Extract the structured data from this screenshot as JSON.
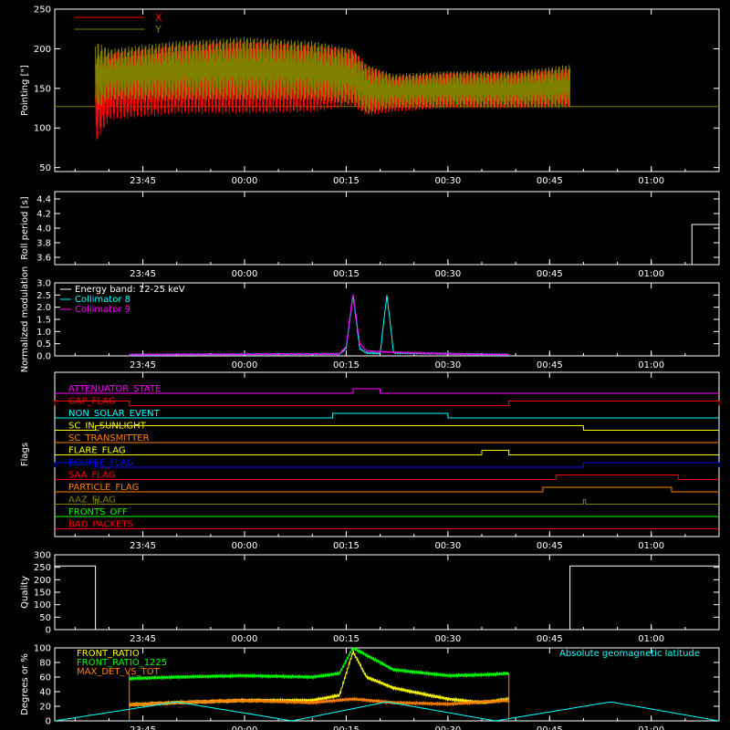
{
  "chart_data": [
    {
      "type": "line",
      "id": "pointing",
      "ylabel": "Pointing [\"]",
      "ylim": [
        45,
        250
      ],
      "yticks": [
        "50",
        "100",
        "150",
        "200",
        "250"
      ],
      "xticks": [
        "23:45",
        "00:00",
        "00:15",
        "00:30",
        "00:45",
        "01:00"
      ],
      "series": [
        {
          "name": "X",
          "color": "#ff0000"
        },
        {
          "name": "Y",
          "color": "#808000"
        }
      ],
      "baseline": 127,
      "envelope_times": [
        "23:38",
        "23:40",
        "23:50",
        "00:00",
        "00:10",
        "00:16",
        "00:18",
        "00:22",
        "00:30",
        "00:40",
        "00:48"
      ],
      "x_low": [
        80,
        110,
        118,
        118,
        120,
        128,
        115,
        120,
        125,
        125,
        127
      ],
      "x_high": [
        185,
        195,
        205,
        210,
        205,
        200,
        180,
        165,
        170,
        170,
        175
      ],
      "y_low": [
        120,
        135,
        135,
        135,
        135,
        130,
        118,
        125,
        125,
        125,
        125
      ],
      "y_high": [
        210,
        200,
        210,
        215,
        210,
        200,
        180,
        168,
        172,
        172,
        180
      ]
    },
    {
      "type": "line",
      "id": "roll-period",
      "ylabel": "Roll period [s]",
      "ylim": [
        3.5,
        4.5
      ],
      "yticks": [
        "3.6",
        "3.8",
        "4.0",
        "4.2",
        "4.4"
      ],
      "xticks": [
        "23:45",
        "00:00",
        "00:15",
        "00:30",
        "00:45",
        "01:00"
      ],
      "step_start": "01:06",
      "step_value": 4.05
    },
    {
      "type": "line",
      "id": "modulation",
      "ylabel": "Normalized modulation",
      "ylim": [
        0,
        3
      ],
      "yticks": [
        "0.0",
        "0.5",
        "1.0",
        "1.5",
        "2.0",
        "2.5",
        "3.0"
      ],
      "xticks": [
        "23:45",
        "00:00",
        "00:15",
        "00:30",
        "00:45",
        "01:00"
      ],
      "legend": [
        "Energy band: 12-25 keV",
        "Collimator 8",
        "Collimator 9"
      ],
      "series": [
        {
          "name": "Collimator 8",
          "color": "#00ffff",
          "x": [
            "23:43",
            "00:14",
            "00:15",
            "00:16",
            "00:17",
            "00:18",
            "00:20",
            "00:21",
            "00:22",
            "00:39"
          ],
          "y": [
            0.05,
            0.08,
            0.3,
            2.5,
            0.3,
            0.12,
            0.1,
            2.5,
            0.12,
            0.05
          ]
        },
        {
          "name": "Collimator 9",
          "color": "#ff00ff",
          "x": [
            "23:43",
            "00:14",
            "00:15",
            "00:16",
            "00:17",
            "00:18",
            "00:22",
            "00:30",
            "00:39"
          ],
          "y": [
            0.05,
            0.08,
            0.4,
            2.6,
            0.5,
            0.2,
            0.15,
            0.08,
            0.05
          ]
        }
      ]
    },
    {
      "type": "line",
      "id": "flags",
      "ylabel": "Flags",
      "xticks": [
        "23:45",
        "00:00",
        "00:15",
        "00:30",
        "00:45",
        "01:00"
      ],
      "flags": [
        {
          "name": "ATTENUATOR_STATE",
          "color": "#ff00ff",
          "on": [
            [
              "00:16",
              "00:20"
            ]
          ]
        },
        {
          "name": "GAP_FLAG",
          "color": "#ff0000",
          "on": [
            [
              "23:32",
              "23:43"
            ],
            [
              "00:39",
              "01:10"
            ]
          ]
        },
        {
          "name": "NON_SOLAR_EVENT",
          "color": "#00ffff",
          "on": [
            [
              "00:13",
              "00:30"
            ]
          ]
        },
        {
          "name": "SC_IN_SUNLIGHT",
          "color": "#ffff00",
          "on": [
            [
              "23:38",
              "00:50"
            ]
          ]
        },
        {
          "name": "SC_TRANSMITTER",
          "color": "#ff8000",
          "on": []
        },
        {
          "name": "FLARE_FLAG",
          "color": "#ffff00",
          "on": [
            [
              "00:35",
              "00:39"
            ]
          ]
        },
        {
          "name": "ECLIPSE_FLAG",
          "color": "#0000ff",
          "on": [
            [
              "23:32",
              "23:38"
            ],
            [
              "00:50",
              "01:10"
            ]
          ]
        },
        {
          "name": "SAA_FLAG",
          "color": "#ff0000",
          "on": [
            [
              "00:46",
              "01:04"
            ]
          ]
        },
        {
          "name": "PARTICLE_FLAG",
          "color": "#ff8000",
          "on": [
            [
              "00:44",
              "01:03"
            ]
          ]
        },
        {
          "name": "AAZ_FLAG",
          "color": "#808000",
          "on": [
            [
              "23:38",
              "23:38.3"
            ],
            [
              "00:50",
              "00:50.3"
            ]
          ]
        },
        {
          "name": "FRONTS_OFF",
          "color": "#00ff00",
          "on": []
        },
        {
          "name": "BAD_PACKETS",
          "color": "#ff0000",
          "on": []
        }
      ]
    },
    {
      "type": "line",
      "id": "quality",
      "ylabel": "Quality",
      "ylim": [
        0,
        300
      ],
      "yticks": [
        "0",
        "50",
        "100",
        "150",
        "200",
        "250",
        "300"
      ],
      "xticks": [
        "23:45",
        "00:00",
        "00:15",
        "00:30",
        "00:45",
        "01:00"
      ],
      "x": [
        "23:32",
        "23:38",
        "23:38",
        "00:48",
        "00:48",
        "01:10"
      ],
      "y": [
        255,
        255,
        0,
        0,
        255,
        255
      ]
    },
    {
      "type": "line",
      "id": "ratios",
      "ylabel": "Degrees or %",
      "ylim": [
        0,
        100
      ],
      "yticks": [
        "0",
        "20",
        "40",
        "60",
        "80",
        "100"
      ],
      "xticks": [
        "23:45",
        "00:00",
        "00:15",
        "00:30",
        "00:45",
        "01:00"
      ],
      "annotation": "Absolute geomagnetic latitude",
      "series": [
        {
          "name": "FRONT_RATIO",
          "color": "#ffff00",
          "x": [
            "23:43",
            "23:50",
            "00:00",
            "00:10",
            "00:14",
            "00:16",
            "00:18",
            "00:22",
            "00:30",
            "00:35",
            "00:39"
          ],
          "y": [
            22,
            25,
            28,
            28,
            35,
            95,
            60,
            45,
            30,
            25,
            30
          ]
        },
        {
          "name": "FRONT_RATIO_1225",
          "color": "#00ff00",
          "x": [
            "23:43",
            "23:50",
            "00:00",
            "00:10",
            "00:14",
            "00:16",
            "00:18",
            "00:22",
            "00:30",
            "00:35",
            "00:39"
          ],
          "y": [
            58,
            60,
            62,
            60,
            65,
            100,
            90,
            70,
            62,
            63,
            65
          ]
        },
        {
          "name": "MAX_DET_VS_TOT",
          "color": "#ff8000",
          "x": [
            "23:43",
            "23:50",
            "00:00",
            "00:10",
            "00:16",
            "00:22",
            "00:30",
            "00:39"
          ],
          "y": [
            22,
            25,
            28,
            25,
            30,
            25,
            23,
            28
          ]
        },
        {
          "name": "",
          "color": "#00ffff",
          "x": [
            "23:32",
            "23:50",
            "00:07",
            "00:21",
            "00:37",
            "00:54",
            "01:10"
          ],
          "y": [
            0,
            26,
            0,
            26,
            0,
            26,
            0
          ]
        }
      ]
    }
  ]
}
